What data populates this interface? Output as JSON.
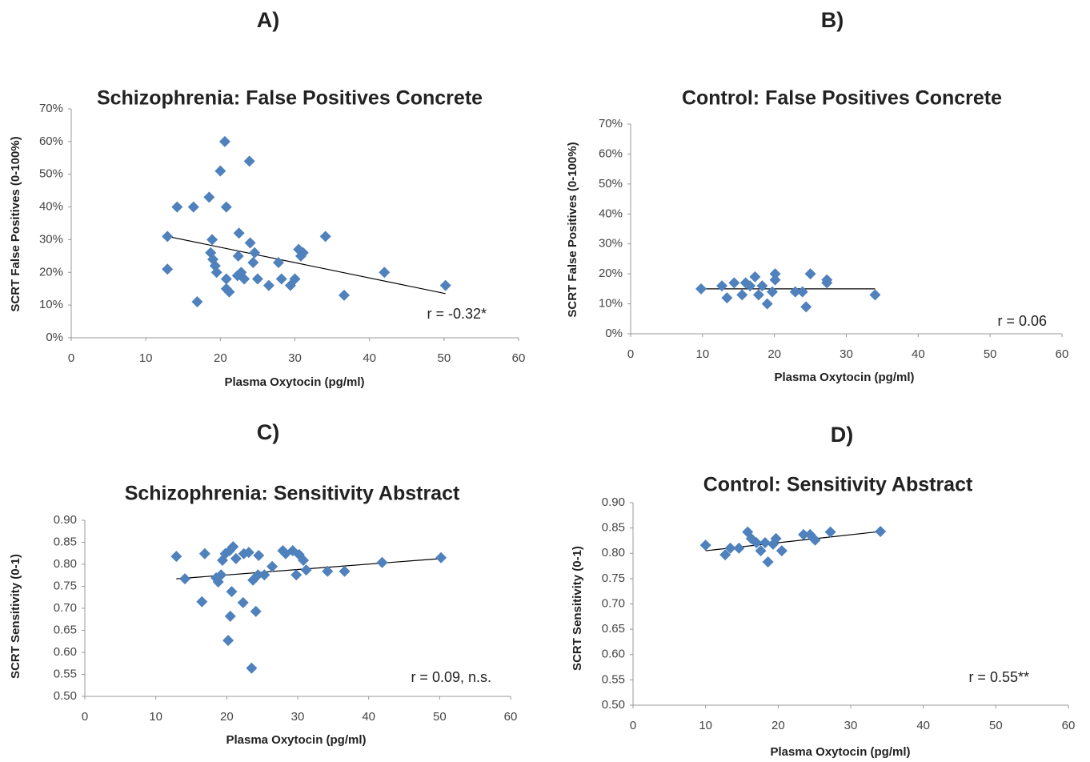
{
  "chart_data": [
    {
      "type": "scatter",
      "panel": "A)",
      "title": "Schizophrenia: False Positives Concrete",
      "x_label": "Plasma Oxytocin (pg/ml)",
      "y_label": "SCRT False Positives (0-100%)",
      "annotation": "r = -0.32*",
      "color": "#4f81bd",
      "x": [
        12.9,
        12.9,
        14.2,
        16.4,
        16.9,
        18.5,
        18.9,
        18.7,
        19,
        19.3,
        19.5,
        20,
        20.6,
        20.8,
        20.8,
        20.8,
        21.2,
        22.3,
        22.5,
        22.4,
        22.8,
        23.2,
        23.9,
        24,
        24.4,
        24.6,
        25,
        26.5,
        27.8,
        28.2,
        29.4,
        30,
        30.5,
        30.8,
        31.1,
        34.1,
        36.6,
        42,
        50.2
      ],
      "values": [
        31,
        21,
        40,
        40,
        11,
        43,
        30,
        26,
        24,
        22,
        20,
        51,
        60,
        40,
        18,
        15,
        14,
        19,
        32,
        25,
        20,
        18,
        54,
        29,
        23,
        26,
        18,
        16,
        23,
        18,
        16,
        18,
        27,
        25,
        26,
        31,
        13,
        20,
        16
      ],
      "trendline": {
        "x": [
          12.9,
          50.2
        ],
        "values": [
          31,
          13.5
        ]
      },
      "xlim": [
        0,
        60
      ],
      "xticks": [
        0,
        10,
        20,
        30,
        40,
        50,
        60
      ],
      "ylim": [
        0,
        70
      ],
      "yticks": [
        {
          "value": 0,
          "label": "0%"
        },
        {
          "value": 10,
          "label": "10%"
        },
        {
          "value": 20,
          "label": "20%"
        },
        {
          "value": 30,
          "label": "30%"
        },
        {
          "value": 40,
          "label": "40%"
        },
        {
          "value": 50,
          "label": "50%"
        },
        {
          "value": 60,
          "label": "60%"
        },
        {
          "value": 70,
          "label": "70%"
        }
      ]
    },
    {
      "type": "scatter",
      "panel": "B)",
      "title": "Control: False Positives Concrete",
      "x_label": "Plasma Oxytocin (pg/ml)",
      "y_label": "SCRT False Positives (0-100%)",
      "annotation": "r = 0.06",
      "color": "#4f81bd",
      "x": [
        9.8,
        12.7,
        13.4,
        14.4,
        15.5,
        16,
        16.6,
        17.3,
        17.8,
        18.3,
        19,
        19.7,
        20.1,
        20.1,
        22.9,
        23.9,
        24.4,
        25,
        27.3,
        27.3,
        34
      ],
      "values": [
        15,
        16,
        12,
        17,
        13,
        17,
        16,
        19,
        13,
        16,
        10,
        14,
        20,
        18,
        14,
        14,
        9,
        20,
        18,
        17,
        13
      ],
      "trendline": {
        "x": [
          9.8,
          34
        ],
        "values": [
          15,
          15
        ]
      },
      "xlim": [
        0,
        60
      ],
      "xticks": [
        0,
        10,
        20,
        30,
        40,
        50,
        60
      ],
      "ylim": [
        0,
        70
      ],
      "yticks": [
        {
          "value": 0,
          "label": "0%"
        },
        {
          "value": 10,
          "label": "10%"
        },
        {
          "value": 20,
          "label": "20%"
        },
        {
          "value": 30,
          "label": "30%"
        },
        {
          "value": 40,
          "label": "40%"
        },
        {
          "value": 50,
          "label": "50%"
        },
        {
          "value": 60,
          "label": "60%"
        },
        {
          "value": 70,
          "label": "70%"
        }
      ]
    },
    {
      "type": "scatter",
      "panel": "C)",
      "title": "Schizophrenia: Sensitivity Abstract",
      "x_label": "Plasma Oxytocin (pg/ml)",
      "y_label": "SCRT Sensitivity (0-1)",
      "annotation": "r = 0.09, n.s.",
      "color": "#4f81bd",
      "x": [
        12.9,
        14.1,
        16.5,
        16.9,
        18.5,
        18.8,
        19.2,
        19.4,
        19.8,
        20.2,
        20.5,
        20.7,
        20.4,
        20.9,
        21.3,
        22.3,
        22.4,
        23.1,
        23.5,
        23.7,
        24.1,
        24.5,
        24.4,
        25.3,
        26.4,
        27.9,
        28.3,
        29.3,
        29.8,
        30.2,
        30.8,
        31.2,
        34.2,
        36.6,
        41.9,
        50.2
      ],
      "values": [
        0.818,
        0.767,
        0.715,
        0.824,
        0.769,
        0.76,
        0.776,
        0.809,
        0.824,
        0.627,
        0.682,
        0.738,
        0.831,
        0.84,
        0.813,
        0.713,
        0.824,
        0.827,
        0.564,
        0.764,
        0.693,
        0.82,
        0.776,
        0.776,
        0.795,
        0.831,
        0.824,
        0.831,
        0.776,
        0.822,
        0.809,
        0.787,
        0.784,
        0.784,
        0.804,
        0.815
      ],
      "trendline": {
        "x": [
          12.9,
          50.2
        ],
        "values": [
          0.767,
          0.813
        ]
      },
      "xlim": [
        0,
        60
      ],
      "xticks": [
        0,
        10,
        20,
        30,
        40,
        50,
        60
      ],
      "ylim": [
        0.5,
        0.9
      ],
      "yticks": [
        {
          "value": 0.5,
          "label": "0.50"
        },
        0.55,
        {
          "value": 0.6,
          "label": "0.60"
        },
        0.65,
        {
          "value": 0.7,
          "label": "0.70"
        },
        0.75,
        {
          "value": 0.8,
          "label": "0.80"
        },
        0.85,
        {
          "value": 0.9,
          "label": "0.90"
        }
      ]
    },
    {
      "type": "scatter",
      "panel": "D)",
      "title": "Control: Sensitivity Abstract",
      "x_label": "Plasma Oxytocin (pg/ml)",
      "y_label": "SCRT Sensitivity (0-1)",
      "annotation": "r = 0.55**",
      "color": "#4f81bd",
      "x": [
        10,
        12.7,
        13.4,
        14.6,
        15.8,
        16.3,
        17,
        17.6,
        18.2,
        18.6,
        19.3,
        19.7,
        20.5,
        23.5,
        24.4,
        25.1,
        27.2,
        34.1
      ],
      "values": [
        0.816,
        0.797,
        0.81,
        0.81,
        0.842,
        0.829,
        0.821,
        0.805,
        0.821,
        0.783,
        0.818,
        0.829,
        0.805,
        0.837,
        0.837,
        0.826,
        0.842,
        0.843
      ],
      "trendline": {
        "x": [
          10,
          34
        ],
        "values": [
          0.805,
          0.843
        ]
      },
      "xlim": [
        0,
        60
      ],
      "xticks": [
        0,
        10,
        20,
        30,
        40,
        50,
        60
      ],
      "ylim": [
        0.5,
        0.9
      ],
      "yticks": [
        {
          "value": 0.5,
          "label": "0.50"
        },
        0.55,
        {
          "value": 0.6,
          "label": "0.60"
        },
        0.65,
        {
          "value": 0.7,
          "label": "0.70"
        },
        0.75,
        {
          "value": 0.8,
          "label": "0.80"
        },
        0.85,
        {
          "value": 0.9,
          "label": "0.90"
        }
      ]
    }
  ]
}
